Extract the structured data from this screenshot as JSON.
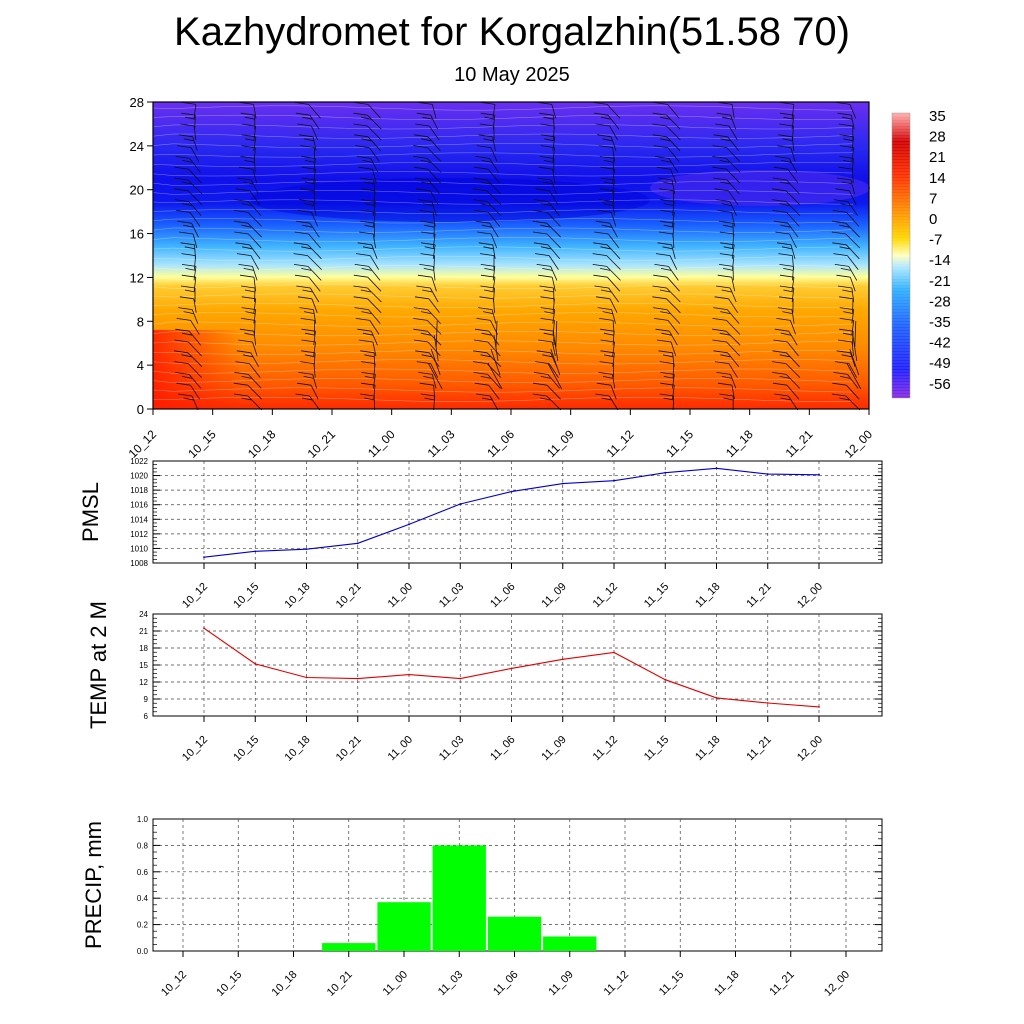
{
  "title": "Kazhydromet for Korgalzhin(51.58 70)",
  "subtitle": "10 May 2025",
  "chart_data": [
    {
      "type": "heatmap",
      "name": "vertical-cross-section",
      "x_ticks": [
        "10_12",
        "10_15",
        "10_18",
        "10_21",
        "11_00",
        "11_03",
        "11_06",
        "11_09",
        "11_12",
        "11_15",
        "11_18",
        "11_21",
        "12_00"
      ],
      "y_ticks": [
        "0",
        "4",
        "8",
        "12",
        "16",
        "20",
        "24",
        "28"
      ],
      "ylim": [
        0,
        28
      ],
      "colorbar_labels": [
        "35",
        "28",
        "21",
        "14",
        "7",
        "0",
        "-7",
        "-14",
        "-21",
        "-28",
        "-35",
        "-42",
        "-49",
        "-56"
      ],
      "colorbar_range": [
        -63,
        42
      ],
      "colors": {
        "stops": [
          "#8a2be2",
          "#1a1aff",
          "#1e90ff",
          "#87cefa",
          "#ffffe0",
          "#ffd700",
          "#ff8c00",
          "#ff4500",
          "#e60000",
          "#ffb0b0"
        ]
      },
      "wind_barbs": true
    },
    {
      "type": "line",
      "ylabel": "PMSL",
      "categories": [
        "10_12",
        "10_15",
        "10_18",
        "10_21",
        "11_00",
        "11_03",
        "11_06",
        "11_09",
        "11_12",
        "11_15",
        "11_18",
        "11_21",
        "12_00"
      ],
      "y_ticks": [
        "1008",
        "1010",
        "1012",
        "1014",
        "1016",
        "1018",
        "1020",
        "1022"
      ],
      "ylim": [
        1008,
        1022
      ],
      "values": [
        1008.8,
        1009.6,
        1009.9,
        1010.7,
        1013.3,
        1016.1,
        1017.8,
        1018.9,
        1019.3,
        1020.4,
        1021.0,
        1020.2,
        1020.1
      ],
      "color": "#0000cc",
      "grid": true
    },
    {
      "type": "line",
      "ylabel": "TEMP at 2 M",
      "categories": [
        "10_12",
        "10_15",
        "10_18",
        "10_21",
        "11_00",
        "11_03",
        "11_06",
        "11_09",
        "11_12",
        "11_15",
        "11_18",
        "11_21",
        "12_00"
      ],
      "y_ticks": [
        "6",
        "9",
        "12",
        "15",
        "18",
        "21",
        "24"
      ],
      "ylim": [
        6,
        24
      ],
      "values": [
        21.5,
        15.2,
        12.8,
        12.6,
        13.3,
        12.6,
        14.4,
        16.0,
        17.2,
        12.4,
        9.2,
        8.3,
        7.6
      ],
      "color": "#e00000",
      "grid": true
    },
    {
      "type": "bar",
      "ylabel": "PRECIP, mm",
      "categories": [
        "10_12",
        "10_15",
        "10_18",
        "10_21",
        "11_00",
        "11_03",
        "11_06",
        "11_09",
        "11_12",
        "11_15",
        "11_18",
        "11_21",
        "12_00"
      ],
      "y_ticks": [
        "0.0",
        "0.2",
        "0.4",
        "0.6",
        "0.8",
        "1.0"
      ],
      "ylim": [
        0,
        1
      ],
      "values": [
        0,
        0,
        0,
        0.06,
        0.37,
        0.8,
        0.26,
        0.11,
        0,
        0,
        0,
        0,
        0
      ],
      "color": "#00ff00",
      "grid": true
    }
  ]
}
